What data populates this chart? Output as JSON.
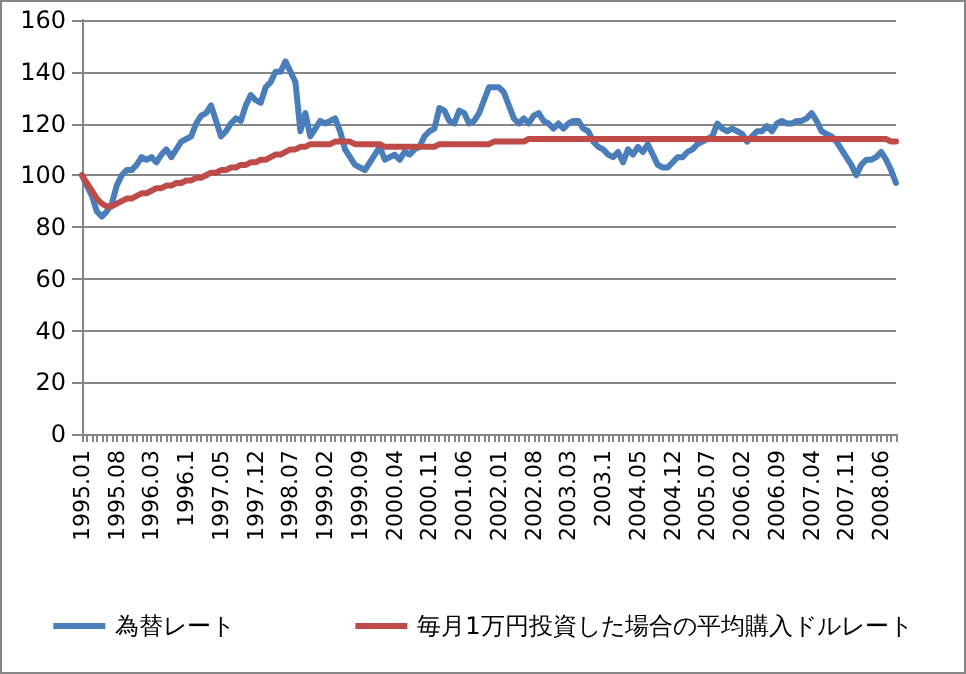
{
  "chart_data": {
    "type": "line",
    "categories": [
      "1995.01",
      null,
      null,
      null,
      null,
      null,
      null,
      "1995.08",
      null,
      null,
      null,
      null,
      null,
      null,
      "1996.03",
      null,
      null,
      null,
      null,
      null,
      null,
      "1996.1",
      null,
      null,
      null,
      null,
      null,
      null,
      "1997.05",
      null,
      null,
      null,
      null,
      null,
      null,
      "1997.12",
      null,
      null,
      null,
      null,
      null,
      null,
      "1998.07",
      null,
      null,
      null,
      null,
      null,
      null,
      "1999.02",
      null,
      null,
      null,
      null,
      null,
      null,
      "1999.09",
      null,
      null,
      null,
      null,
      null,
      null,
      "2000.04",
      null,
      null,
      null,
      null,
      null,
      null,
      "2000.11",
      null,
      null,
      null,
      null,
      null,
      null,
      "2001.06",
      null,
      null,
      null,
      null,
      null,
      null,
      "2002.01",
      null,
      null,
      null,
      null,
      null,
      null,
      "2002.08",
      null,
      null,
      null,
      null,
      null,
      null,
      "2003.03",
      null,
      null,
      null,
      null,
      null,
      null,
      "2003.1",
      null,
      null,
      null,
      null,
      null,
      null,
      "2004.05",
      null,
      null,
      null,
      null,
      null,
      null,
      "2004.12",
      null,
      null,
      null,
      null,
      null,
      null,
      "2005.07",
      null,
      null,
      null,
      null,
      null,
      null,
      "2006.02",
      null,
      null,
      null,
      null,
      null,
      null,
      "2006.09",
      null,
      null,
      null,
      null,
      null,
      null,
      "2007.04",
      null,
      null,
      null,
      null,
      null,
      null,
      "2007.11",
      null,
      null,
      null,
      null,
      null,
      null,
      "2008.06",
      null,
      null,
      null
    ],
    "series": [
      {
        "name": "為替レート",
        "color": "#4a7ebb",
        "values": [
          100,
          96,
          92,
          86,
          84,
          86,
          89,
          96,
          100,
          102,
          102,
          104,
          107,
          106,
          107,
          105,
          108,
          110,
          107,
          110,
          113,
          114,
          115,
          120,
          123,
          124,
          127,
          121,
          115,
          117,
          120,
          122,
          121,
          127,
          131,
          129,
          128,
          134,
          136,
          140,
          140,
          144,
          140,
          136,
          117,
          124,
          115,
          118,
          121,
          120,
          121,
          122,
          117,
          110,
          107,
          104,
          103,
          102,
          105,
          108,
          111,
          106,
          107,
          108,
          106,
          109,
          108,
          110,
          111,
          115,
          117,
          118,
          126,
          125,
          121,
          120,
          125,
          124,
          120,
          121,
          124,
          129,
          134,
          134,
          134,
          132,
          127,
          122,
          120,
          122,
          120,
          123,
          124,
          121,
          120,
          118,
          120,
          118,
          120,
          121,
          121,
          118,
          117,
          113,
          111,
          110,
          108,
          107,
          109,
          105,
          110,
          108,
          111,
          109,
          112,
          108,
          104,
          103,
          103,
          105,
          107,
          107,
          109,
          110,
          112,
          113,
          114,
          115,
          120,
          118,
          117,
          118,
          117,
          116,
          113,
          115,
          117,
          117,
          119,
          117,
          120,
          121,
          120,
          120,
          121,
          121,
          122,
          124,
          121,
          117,
          116,
          115,
          113,
          110,
          107,
          104,
          100,
          104,
          106,
          106,
          107,
          109,
          106,
          102,
          97
        ]
      },
      {
        "name": "毎月1万円投資した場合の平均購入ドルレート",
        "color": "#be4b48",
        "values": [
          100,
          97,
          94,
          91,
          89,
          88,
          88,
          89,
          90,
          91,
          91,
          92,
          93,
          93,
          94,
          95,
          95,
          96,
          96,
          97,
          97,
          98,
          98,
          99,
          99,
          100,
          101,
          101,
          102,
          102,
          103,
          103,
          104,
          104,
          105,
          105,
          106,
          106,
          107,
          108,
          108,
          109,
          110,
          110,
          111,
          111,
          112,
          112,
          112,
          112,
          112,
          113,
          113,
          113,
          113,
          112,
          112,
          112,
          112,
          112,
          112,
          111,
          111,
          111,
          111,
          111,
          111,
          111,
          111,
          111,
          111,
          111,
          112,
          112,
          112,
          112,
          112,
          112,
          112,
          112,
          112,
          112,
          112,
          113,
          113,
          113,
          113,
          113,
          113,
          113,
          114,
          114,
          114,
          114,
          114,
          114,
          114,
          114,
          114,
          114,
          114,
          114,
          114,
          114,
          114,
          114,
          114,
          114,
          114,
          114,
          114,
          114,
          114,
          114,
          114,
          114,
          114,
          114,
          114,
          114,
          114,
          114,
          114,
          114,
          114,
          114,
          114,
          114,
          114,
          114,
          114,
          114,
          114,
          114,
          114,
          114,
          114,
          114,
          114,
          114,
          114,
          114,
          114,
          114,
          114,
          114,
          114,
          114,
          114,
          114,
          114,
          114,
          114,
          114,
          114,
          114,
          114,
          114,
          114,
          114,
          114,
          114,
          114,
          113,
          113
        ]
      }
    ],
    "ylim": [
      0,
      160
    ],
    "yticks": [
      0,
      20,
      40,
      60,
      80,
      100,
      120,
      140,
      160
    ],
    "grid": "y",
    "legend": "bottom",
    "marker": "none",
    "line_style": "solid"
  }
}
